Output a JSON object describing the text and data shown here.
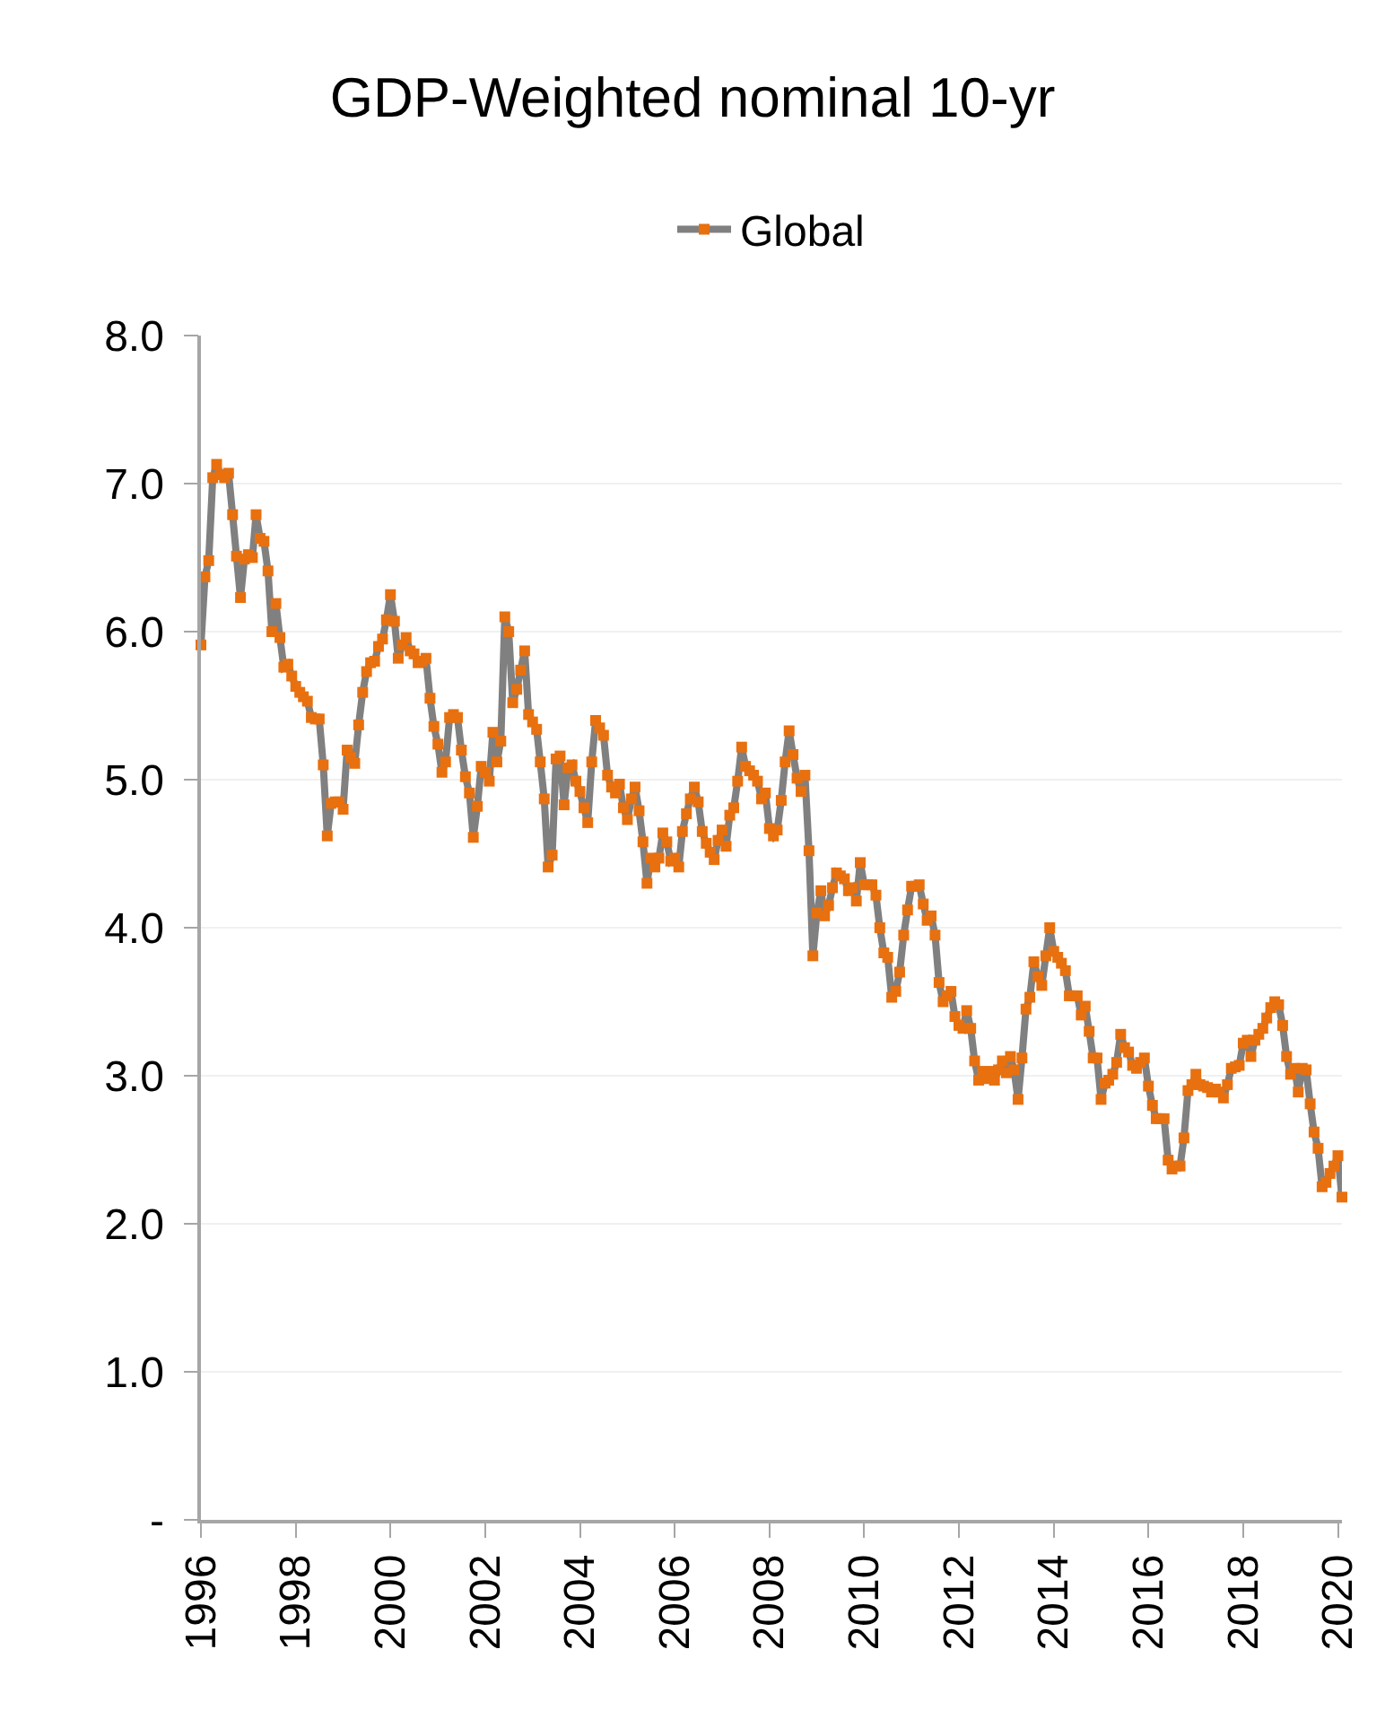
{
  "chart_data": {
    "type": "line",
    "title": "GDP-Weighted nominal 10-yr",
    "x": [
      "1996-01",
      "1996-02",
      "1996-03",
      "1996-04",
      "1996-05",
      "1996-06",
      "1996-07",
      "1996-08",
      "1996-09",
      "1996-10",
      "1996-11",
      "1996-12",
      "1997-01",
      "1997-02",
      "1997-03",
      "1997-04",
      "1997-05",
      "1997-06",
      "1997-07",
      "1997-08",
      "1997-09",
      "1997-10",
      "1997-11",
      "1997-12",
      "1998-01",
      "1998-02",
      "1998-03",
      "1998-04",
      "1998-05",
      "1998-06",
      "1998-07",
      "1998-08",
      "1998-09",
      "1998-10",
      "1998-11",
      "1998-12",
      "1999-01",
      "1999-02",
      "1999-03",
      "1999-04",
      "1999-05",
      "1999-06",
      "1999-07",
      "1999-08",
      "1999-09",
      "1999-10",
      "1999-11",
      "1999-12",
      "2000-01",
      "2000-02",
      "2000-03",
      "2000-04",
      "2000-05",
      "2000-06",
      "2000-07",
      "2000-08",
      "2000-09",
      "2000-10",
      "2000-11",
      "2000-12",
      "2001-01",
      "2001-02",
      "2001-03",
      "2001-04",
      "2001-05",
      "2001-06",
      "2001-07",
      "2001-08",
      "2001-09",
      "2001-10",
      "2001-11",
      "2001-12",
      "2002-01",
      "2002-02",
      "2002-03",
      "2002-04",
      "2002-05",
      "2002-06",
      "2002-07",
      "2002-08",
      "2002-09",
      "2002-10",
      "2002-11",
      "2002-12",
      "2003-01",
      "2003-02",
      "2003-03",
      "2003-04",
      "2003-05",
      "2003-06",
      "2003-07",
      "2003-08",
      "2003-09",
      "2003-10",
      "2003-11",
      "2003-12",
      "2004-01",
      "2004-02",
      "2004-03",
      "2004-04",
      "2004-05",
      "2004-06",
      "2004-07",
      "2004-08",
      "2004-09",
      "2004-10",
      "2004-11",
      "2004-12",
      "2005-01",
      "2005-02",
      "2005-03",
      "2005-04",
      "2005-05",
      "2005-06",
      "2005-07",
      "2005-08",
      "2005-09",
      "2005-10",
      "2005-11",
      "2005-12",
      "2006-01",
      "2006-02",
      "2006-03",
      "2006-04",
      "2006-05",
      "2006-06",
      "2006-07",
      "2006-08",
      "2006-09",
      "2006-10",
      "2006-11",
      "2006-12",
      "2007-01",
      "2007-02",
      "2007-03",
      "2007-04",
      "2007-05",
      "2007-06",
      "2007-07",
      "2007-08",
      "2007-09",
      "2007-10",
      "2007-11",
      "2007-12",
      "2008-01",
      "2008-02",
      "2008-03",
      "2008-04",
      "2008-05",
      "2008-06",
      "2008-07",
      "2008-08",
      "2008-09",
      "2008-10",
      "2008-11",
      "2008-12",
      "2009-01",
      "2009-02",
      "2009-03",
      "2009-04",
      "2009-05",
      "2009-06",
      "2009-07",
      "2009-08",
      "2009-09",
      "2009-10",
      "2009-11",
      "2009-12",
      "2010-01",
      "2010-02",
      "2010-03",
      "2010-04",
      "2010-05",
      "2010-06",
      "2010-07",
      "2010-08",
      "2010-09",
      "2010-10",
      "2010-11",
      "2010-12",
      "2011-01",
      "2011-02",
      "2011-03",
      "2011-04",
      "2011-05",
      "2011-06",
      "2011-07",
      "2011-08",
      "2011-09",
      "2011-10",
      "2011-11",
      "2011-12",
      "2012-01",
      "2012-02",
      "2012-03",
      "2012-04",
      "2012-05",
      "2012-06",
      "2012-07",
      "2012-08",
      "2012-09",
      "2012-10",
      "2012-11",
      "2012-12",
      "2013-01",
      "2013-02",
      "2013-03",
      "2013-04",
      "2013-05",
      "2013-06",
      "2013-07",
      "2013-08",
      "2013-09",
      "2013-10",
      "2013-11",
      "2013-12",
      "2014-01",
      "2014-02",
      "2014-03",
      "2014-04",
      "2014-05",
      "2014-06",
      "2014-07",
      "2014-08",
      "2014-09",
      "2014-10",
      "2014-11",
      "2014-12",
      "2015-01",
      "2015-02",
      "2015-03",
      "2015-04",
      "2015-05",
      "2015-06",
      "2015-07",
      "2015-08",
      "2015-09",
      "2015-10",
      "2015-11",
      "2015-12",
      "2016-01",
      "2016-02",
      "2016-03",
      "2016-04",
      "2016-05",
      "2016-06",
      "2016-07",
      "2016-08",
      "2016-09",
      "2016-10",
      "2016-11",
      "2016-12",
      "2017-01",
      "2017-02",
      "2017-03",
      "2017-04",
      "2017-05",
      "2017-06",
      "2017-07",
      "2017-08",
      "2017-09",
      "2017-10",
      "2017-11",
      "2017-12",
      "2018-01",
      "2018-02",
      "2018-03",
      "2018-04",
      "2018-05",
      "2018-06",
      "2018-07",
      "2018-08",
      "2018-09",
      "2018-10",
      "2018-11",
      "2018-12",
      "2019-01",
      "2019-02",
      "2019-03",
      "2019-04",
      "2019-05",
      "2019-06",
      "2019-07",
      "2019-08",
      "2019-09",
      "2019-10",
      "2019-11",
      "2019-12",
      "2020-01",
      "2020-02"
    ],
    "series": [
      {
        "name": "Global",
        "color": "#e8700f",
        "values": [
          5.91,
          6.37,
          6.48,
          7.04,
          7.13,
          7.06,
          7.04,
          7.07,
          6.79,
          6.51,
          6.23,
          6.49,
          6.52,
          6.5,
          6.79,
          6.63,
          6.61,
          6.41,
          6.0,
          6.19,
          5.96,
          5.76,
          5.78,
          5.7,
          5.63,
          5.59,
          5.56,
          5.53,
          5.42,
          5.41,
          5.41,
          5.1,
          4.62,
          4.84,
          4.85,
          4.85,
          4.8,
          5.2,
          5.15,
          5.11,
          5.37,
          5.59,
          5.73,
          5.79,
          5.8,
          5.9,
          5.95,
          6.08,
          6.25,
          6.07,
          5.82,
          5.91,
          5.96,
          5.87,
          5.85,
          5.79,
          5.8,
          5.82,
          5.55,
          5.36,
          5.24,
          5.05,
          5.12,
          5.42,
          5.44,
          5.42,
          5.2,
          5.02,
          4.91,
          4.61,
          4.82,
          5.09,
          5.05,
          4.99,
          5.32,
          5.12,
          5.26,
          6.1,
          6.0,
          5.52,
          5.61,
          5.74,
          5.87,
          5.44,
          5.39,
          5.34,
          5.12,
          4.87,
          4.41,
          4.49,
          5.14,
          5.16,
          4.83,
          5.08,
          5.1,
          4.99,
          4.92,
          4.81,
          4.71,
          5.12,
          5.4,
          5.35,
          5.3,
          5.03,
          4.95,
          4.91,
          4.97,
          4.81,
          4.73,
          4.87,
          4.95,
          4.79,
          4.58,
          4.3,
          4.47,
          4.41,
          4.47,
          4.64,
          4.58,
          4.45,
          4.47,
          4.41,
          4.65,
          4.77,
          4.87,
          4.95,
          4.85,
          4.65,
          4.57,
          4.51,
          4.46,
          4.59,
          4.66,
          4.55,
          4.76,
          4.81,
          4.99,
          5.22,
          5.09,
          5.06,
          5.03,
          4.99,
          4.87,
          4.91,
          4.67,
          4.62,
          4.66,
          4.86,
          5.12,
          5.33,
          5.17,
          5.01,
          4.92,
          5.03,
          4.52,
          3.81,
          4.1,
          4.25,
          4.08,
          4.15,
          4.27,
          4.37,
          4.35,
          4.33,
          4.25,
          4.27,
          4.18,
          4.44,
          4.29,
          4.29,
          4.29,
          4.22,
          4.0,
          3.83,
          3.8,
          3.53,
          3.57,
          3.7,
          3.95,
          4.12,
          4.28,
          4.28,
          4.29,
          4.16,
          4.05,
          4.08,
          3.95,
          3.63,
          3.5,
          3.54,
          3.57,
          3.4,
          3.34,
          3.32,
          3.44,
          3.32,
          3.1,
          2.97,
          3.03,
          2.98,
          3.03,
          2.97,
          3.04,
          3.1,
          3.02,
          3.13,
          3.04,
          2.84,
          3.12,
          3.45,
          3.53,
          3.77,
          3.67,
          3.61,
          3.81,
          4.0,
          3.84,
          3.8,
          3.76,
          3.71,
          3.54,
          3.54,
          3.54,
          3.41,
          3.47,
          3.3,
          3.12,
          3.12,
          2.84,
          2.95,
          2.97,
          3.01,
          3.09,
          3.28,
          3.19,
          3.16,
          3.07,
          3.05,
          3.09,
          3.12,
          2.93,
          2.8,
          2.71,
          2.71,
          2.71,
          2.43,
          2.37,
          2.39,
          2.39,
          2.58,
          2.9,
          2.94,
          3.01,
          2.94,
          2.93,
          2.92,
          2.89,
          2.91,
          2.89,
          2.85,
          2.94,
          3.05,
          3.06,
          3.07,
          3.22,
          3.24,
          3.13,
          3.24,
          3.28,
          3.32,
          3.39,
          3.46,
          3.5,
          3.48,
          3.34,
          3.13,
          3.01,
          3.05,
          2.89,
          3.05,
          3.04,
          2.81,
          2.62,
          2.51,
          2.25,
          2.28,
          2.34,
          2.39,
          2.46,
          2.18
        ]
      }
    ],
    "xlim": [
      "1996-01-01",
      "2020-02-01"
    ],
    "xticks": [
      {
        "value": "1996",
        "label": "1996"
      },
      {
        "value": "1998",
        "label": "1998"
      },
      {
        "value": "2000",
        "label": "2000"
      },
      {
        "value": "2002",
        "label": "2002"
      },
      {
        "value": "2004",
        "label": "2004"
      },
      {
        "value": "2006",
        "label": "2006"
      },
      {
        "value": "2008",
        "label": "2008"
      },
      {
        "value": "2010",
        "label": "2010"
      },
      {
        "value": "2012",
        "label": "2012"
      },
      {
        "value": "2014",
        "label": "2014"
      },
      {
        "value": "2016",
        "label": "2016"
      },
      {
        "value": "2018",
        "label": "2018"
      },
      {
        "value": "2020",
        "label": "2020"
      }
    ],
    "ylim": [
      0,
      8
    ],
    "yticks": [
      {
        "value": 0,
        "label": "-"
      },
      {
        "value": 1,
        "label": "1.0"
      },
      {
        "value": 2,
        "label": "2.0"
      },
      {
        "value": 3,
        "label": "3.0"
      },
      {
        "value": 4,
        "label": "4.0"
      },
      {
        "value": 5,
        "label": "5.0"
      },
      {
        "value": 6,
        "label": "6.0"
      },
      {
        "value": 7,
        "label": "7.0"
      },
      {
        "value": 8,
        "label": "8.0"
      }
    ],
    "grid": "y",
    "legend": "top",
    "marker": "square",
    "line_style": "solid"
  }
}
